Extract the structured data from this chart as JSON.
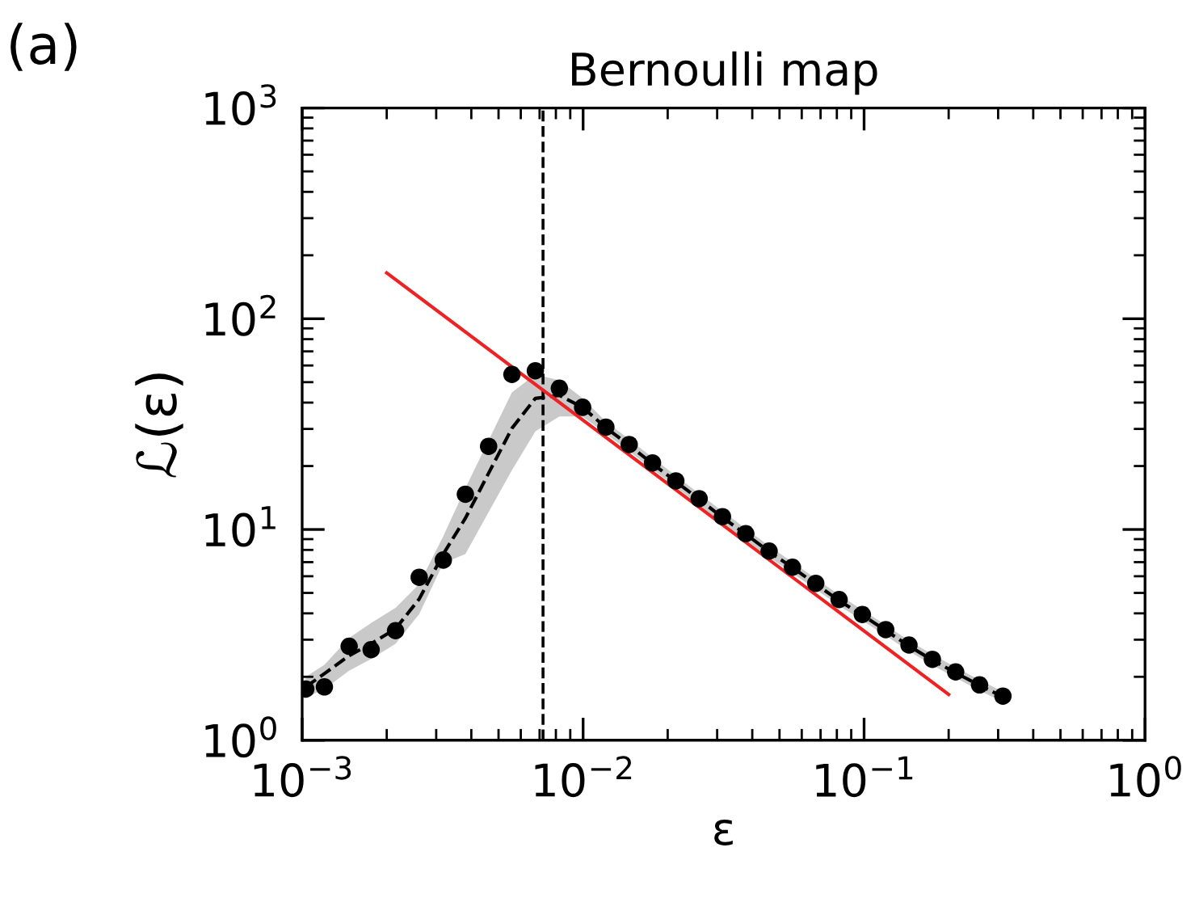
{
  "chart_data": {
    "type": "scatter",
    "title": "Bernoulli map",
    "xlabel": "ε",
    "ylabel": "ℒ(ε)",
    "annotations": [
      "(a)"
    ],
    "log": "xy",
    "xlim": [
      0.001,
      1
    ],
    "ylim": [
      1,
      1000
    ],
    "xticks": [
      {
        "value": 0.001,
        "label": "10$^{−3}$"
      },
      {
        "value": 0.01,
        "label": "10$^{−2}$"
      },
      {
        "value": 0.1,
        "label": "10$^{−1}$"
      },
      {
        "value": 1,
        "label": "10$^{0}$"
      }
    ],
    "yticks": [
      {
        "value": 1,
        "label": "10$^{0}$"
      },
      {
        "value": 10,
        "label": "10$^{1}$"
      },
      {
        "value": 100,
        "label": "10$^{2}$"
      },
      {
        "value": 1000,
        "label": "10$^{3}$"
      }
    ],
    "grid": false,
    "ref_lines": [
      {
        "axis": "x",
        "value": 0.0072,
        "color": "#000000",
        "line_style": "dashed"
      }
    ],
    "series": [
      {
        "type": "line",
        "color": "#000000",
        "line_style": "dashed",
        "marker": "none",
        "x": [
          0.00103,
          0.0012,
          0.00147,
          0.00176,
          0.00215,
          0.00261,
          0.00318,
          0.00381,
          0.00461,
          0.00558,
          0.00676,
          0.00823,
          0.00996,
          0.01205,
          0.01459,
          0.01766,
          0.02138,
          0.02588,
          0.03133,
          0.03793,
          0.04592,
          0.0556,
          0.0673,
          0.0815,
          0.0986,
          0.1194,
          0.1445,
          0.175,
          0.2118,
          0.2576,
          0.312
        ],
        "values": [
          1.79,
          2.07,
          2.52,
          2.87,
          3.38,
          4.68,
          7.65,
          11.3,
          18.5,
          30.2,
          41.9,
          43.3,
          38.0,
          30.4,
          25.1,
          20.5,
          16.9,
          13.9,
          11.4,
          9.5,
          7.85,
          6.6,
          5.5,
          4.6,
          3.92,
          3.32,
          2.8,
          2.4,
          2.09,
          1.82,
          1.61
        ],
        "lower": [
          1.59,
          1.75,
          2.14,
          2.43,
          2.87,
          3.97,
          6.93,
          7.65,
          12.1,
          19.1,
          29.2,
          34.4,
          34.4,
          28.5,
          23.5,
          19.3,
          15.9,
          13.1,
          10.7,
          8.9,
          7.4,
          6.2,
          5.2,
          4.35,
          3.7,
          3.13,
          2.65,
          2.27,
          1.98,
          1.72,
          1.52
        ],
        "upper": [
          2.0,
          2.28,
          3.06,
          3.6,
          4.25,
          5.51,
          9.3,
          15.7,
          26.5,
          44.7,
          54.4,
          51.0,
          41.9,
          32.5,
          26.8,
          21.9,
          18.0,
          14.8,
          12.2,
          10.1,
          8.35,
          7.0,
          5.85,
          4.9,
          4.15,
          3.52,
          2.97,
          2.55,
          2.22,
          1.93,
          1.7
        ]
      },
      {
        "type": "line",
        "color": "#ee2222",
        "line_style": "solid",
        "marker": "none",
        "x": [
          0.002,
          0.2
        ],
        "values": [
          165,
          1.65
        ]
      },
      {
        "color": "#000000",
        "marker": "circle",
        "x": [
          0.00103,
          0.0012,
          0.00147,
          0.00176,
          0.00215,
          0.00261,
          0.00318,
          0.00381,
          0.00461,
          0.00558,
          0.00676,
          0.00823,
          0.00996,
          0.01205,
          0.01459,
          0.01766,
          0.02138,
          0.02588,
          0.03133,
          0.03793,
          0.04592,
          0.0556,
          0.0673,
          0.0815,
          0.0986,
          0.1194,
          0.1445,
          0.175,
          0.2118,
          0.2576,
          0.312
        ],
        "values": [
          1.75,
          1.79,
          2.79,
          2.69,
          3.31,
          5.93,
          7.16,
          14.7,
          24.8,
          54.4,
          56.6,
          46.8,
          38.0,
          30.6,
          25.3,
          20.7,
          17.0,
          14.0,
          11.5,
          9.55,
          7.9,
          6.62,
          5.55,
          4.65,
          3.95,
          3.35,
          2.83,
          2.42,
          2.11,
          1.83,
          1.62
        ]
      }
    ]
  }
}
